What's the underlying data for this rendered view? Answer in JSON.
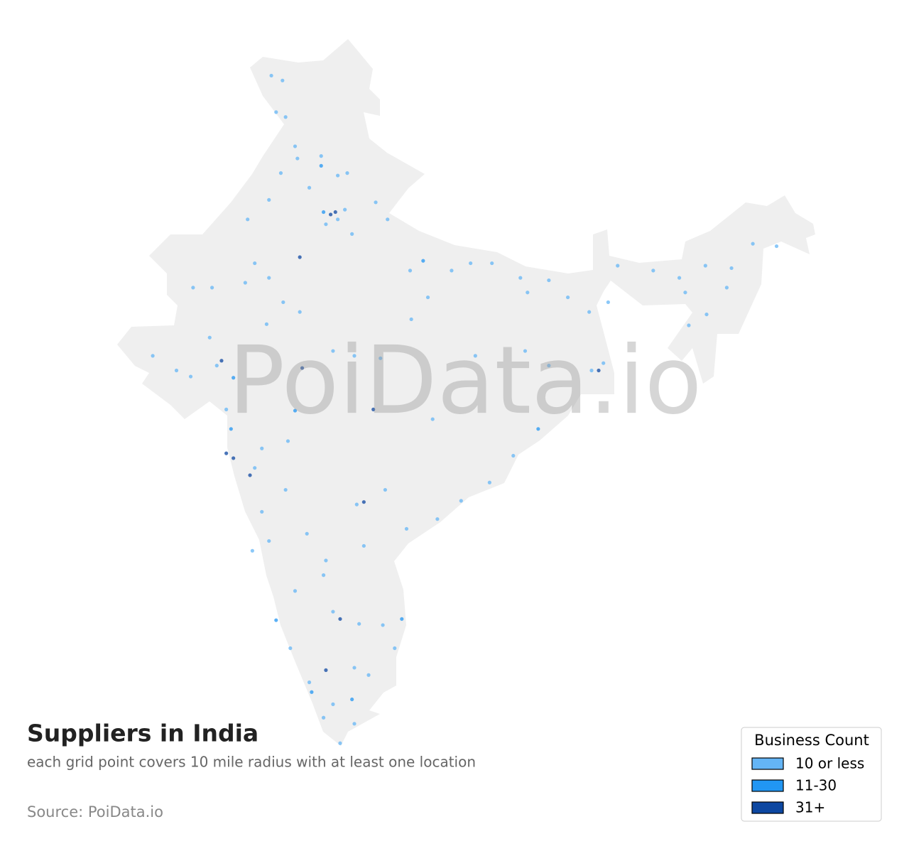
{
  "title": "Suppliers in India",
  "subtitle": "each grid point covers 10 mile radius with at least one location",
  "source": "Source: PoiData.io",
  "watermark": "PoiData.io",
  "legend": {
    "title": "Business Count",
    "items": [
      {
        "label": "10 or less",
        "color": "#64b5f6"
      },
      {
        "label": "11-30",
        "color": "#2196f3"
      },
      {
        "label": "31+",
        "color": "#0d47a1"
      }
    ]
  },
  "grid_points": {
    "lon": [
      74.5,
      74.97,
      74.7,
      75.1,
      75.5,
      75.6,
      76.6,
      76.6,
      77.3,
      77.7,
      76.1,
      74.9,
      74.4,
      73.5,
      77.0,
      76.7,
      77.3,
      76.8,
      77.2,
      77.6,
      77.9,
      78.9,
      79.4,
      80.35,
      80.9,
      82.1,
      82.9,
      83.8,
      85.0,
      85.3,
      86.2,
      87.0,
      88.3,
      88.0,
      88.5,
      87.9,
      88.7,
      89.1,
      90.6,
      91.7,
      92.8,
      93.9,
      94.8,
      95.8,
      91.95,
      92.85,
      93.7,
      92.1,
      69.5,
      70.5,
      71.1,
      72.4,
      72.2,
      72.9,
      71.9,
      71.2,
      72.0,
      73.4,
      73.8,
      74.4,
      75.0,
      75.7,
      75.7,
      74.3,
      77.1,
      78.0,
      75.8,
      79.1,
      80.4,
      81.1,
      83.1,
      78.8,
      81.3,
      85.2,
      86.2,
      85.75,
      72.6,
      72.8,
      72.6,
      72.9,
      73.6,
      73.8,
      74.1,
      75.5,
      75.2,
      78.4,
      78.1,
      79.3,
      80.2,
      81.5,
      82.5,
      83.7,
      84.7,
      74.1,
      74.4,
      73.7,
      75.1,
      76.0,
      76.8,
      78.4,
      77.4,
      77.1,
      78.2,
      80.0,
      79.7,
      79.2,
      74.7,
      75.3,
      76.8,
      78.0,
      78.6,
      76.2,
      76.1,
      77.1,
      77.9,
      77.4,
      76.7,
      78.0,
      75.5,
      76.7
    ],
    "lat": [
      35.5,
      35.3,
      34.0,
      33.8,
      32.6,
      32.1,
      32.2,
      31.8,
      31.4,
      31.5,
      30.9,
      31.5,
      30.4,
      29.6,
      29.8,
      29.9,
      29.6,
      29.4,
      29.9,
      30.0,
      29.0,
      30.3,
      29.6,
      27.5,
      27.9,
      27.5,
      27.8,
      27.8,
      27.2,
      26.6,
      27.1,
      26.4,
      23.4,
      23.4,
      23.7,
      25.8,
      26.2,
      27.7,
      27.5,
      27.2,
      27.7,
      27.6,
      28.6,
      28.5,
      26.6,
      25.7,
      26.8,
      25.25,
      24.0,
      23.4,
      23.15,
      23.8,
      23.6,
      23.1,
      24.75,
      26.8,
      26.8,
      27.0,
      27.8,
      27.2,
      26.2,
      28.05,
      25.8,
      25.3,
      24.2,
      24.0,
      23.5,
      23.9,
      25.5,
      26.4,
      24.0,
      21.8,
      21.4,
      24.2,
      23.6,
      21.0,
      21.8,
      21.0,
      20.0,
      19.8,
      19.1,
      19.4,
      20.2,
      21.75,
      20.5,
      18.0,
      17.9,
      18.5,
      16.9,
      17.3,
      18.05,
      18.8,
      19.9,
      17.6,
      16.4,
      16.0,
      18.5,
      16.7,
      15.6,
      16.2,
      13.2,
      13.5,
      13.0,
      13.2,
      12.0,
      12.95,
      13.15,
      12.0,
      11.1,
      11.2,
      10.9,
      10.2,
      10.6,
      9.7,
      9.9,
      8.1,
      9.15,
      8.9,
      14.35,
      15.0
    ],
    "level": [
      0,
      0,
      0,
      0,
      0,
      0,
      0,
      1,
      0,
      0,
      0,
      0,
      0,
      0,
      2,
      1,
      0,
      0,
      2,
      0,
      0,
      0,
      0,
      0,
      1,
      0,
      0,
      0,
      0,
      0,
      0,
      0,
      2,
      0,
      0,
      0,
      0,
      0,
      0,
      0,
      0,
      0,
      0,
      0,
      0,
      0,
      0,
      0,
      0,
      0,
      0,
      2,
      0,
      1,
      0,
      0,
      0,
      0,
      0,
      0,
      0,
      2,
      0,
      0,
      0,
      0,
      2,
      0,
      0,
      0,
      0,
      2,
      0,
      0,
      0,
      1,
      0,
      1,
      2,
      2,
      2,
      0,
      0,
      1,
      0,
      2,
      0,
      0,
      0,
      0,
      0,
      0,
      0,
      0,
      0,
      0,
      0,
      0,
      0,
      0,
      2,
      0,
      0,
      1,
      0,
      0,
      1,
      0,
      2,
      0,
      0,
      1,
      0,
      0,
      1,
      0,
      0,
      0,
      0,
      0
    ]
  }
}
